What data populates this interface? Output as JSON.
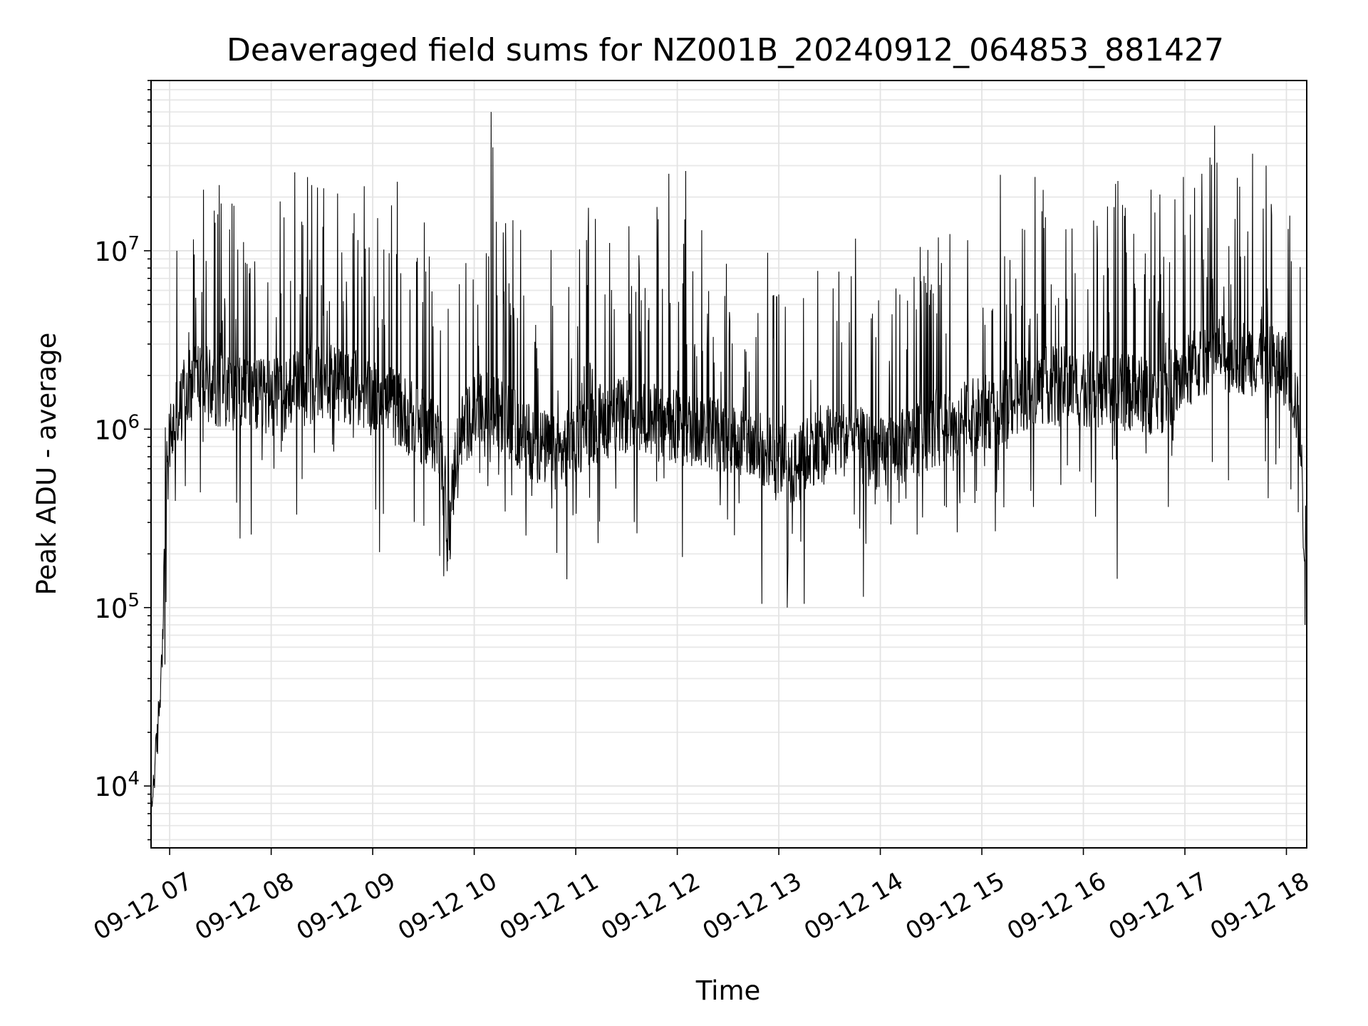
{
  "chart_data": {
    "type": "line",
    "title": "Deaveraged field sums for NZ001B_20240912_064853_881427",
    "xlabel": "Time",
    "ylabel": "Peak ADU - average",
    "yscale": "log",
    "ylim": [
      4500,
      90000000
    ],
    "xlim": [
      "2024-09-12 06:49",
      "2024-09-12 18:12"
    ],
    "grid": "major and minor, light gray",
    "legend": "none",
    "x_ticks": [
      {
        "time": "2024-09-12 07:00",
        "label": "09-12 07"
      },
      {
        "time": "2024-09-12 08:00",
        "label": "09-12 08"
      },
      {
        "time": "2024-09-12 09:00",
        "label": "09-12 09"
      },
      {
        "time": "2024-09-12 10:00",
        "label": "09-12 10"
      },
      {
        "time": "2024-09-12 11:00",
        "label": "09-12 11"
      },
      {
        "time": "2024-09-12 12:00",
        "label": "09-12 12"
      },
      {
        "time": "2024-09-12 13:00",
        "label": "09-12 13"
      },
      {
        "time": "2024-09-12 14:00",
        "label": "09-12 14"
      },
      {
        "time": "2024-09-12 15:00",
        "label": "09-12 15"
      },
      {
        "time": "2024-09-12 16:00",
        "label": "09-12 16"
      },
      {
        "time": "2024-09-12 17:00",
        "label": "09-12 17"
      },
      {
        "time": "2024-09-12 18:00",
        "label": "09-12 18"
      }
    ],
    "y_ticks": [
      {
        "value": 10000,
        "base": "10",
        "exp": "4"
      },
      {
        "value": 100000,
        "base": "10",
        "exp": "5"
      },
      {
        "value": 1000000,
        "base": "10",
        "exp": "6"
      },
      {
        "value": 10000000,
        "base": "10",
        "exp": "7"
      }
    ],
    "series": [
      {
        "color": "#000000",
        "x": [
          "2024-09-12 06:49",
          "2024-09-12 06:51",
          "2024-09-12 06:53",
          "2024-09-12 06:55",
          "2024-09-12 06:57",
          "2024-09-12 06:58",
          "2024-09-12 07:00",
          "2024-09-12 07:05",
          "2024-09-12 07:10",
          "2024-09-12 07:15",
          "2024-09-12 07:20",
          "2024-09-12 07:30",
          "2024-09-12 07:40",
          "2024-09-12 07:50",
          "2024-09-12 08:00",
          "2024-09-12 08:10",
          "2024-09-12 08:20",
          "2024-09-12 08:30",
          "2024-09-12 08:40",
          "2024-09-12 08:50",
          "2024-09-12 09:00",
          "2024-09-12 09:10",
          "2024-09-12 09:20",
          "2024-09-12 09:30",
          "2024-09-12 09:40",
          "2024-09-12 09:45",
          "2024-09-12 09:50",
          "2024-09-12 10:00",
          "2024-09-12 10:10",
          "2024-09-12 10:20",
          "2024-09-12 10:30",
          "2024-09-12 10:40",
          "2024-09-12 10:50",
          "2024-09-12 11:00",
          "2024-09-12 11:15",
          "2024-09-12 11:30",
          "2024-09-12 11:45",
          "2024-09-12 12:00",
          "2024-09-12 12:15",
          "2024-09-12 12:30",
          "2024-09-12 12:45",
          "2024-09-12 13:00",
          "2024-09-12 13:10",
          "2024-09-12 13:20",
          "2024-09-12 13:40",
          "2024-09-12 14:00",
          "2024-09-12 14:15",
          "2024-09-12 14:30",
          "2024-09-12 14:45",
          "2024-09-12 15:00",
          "2024-09-12 15:15",
          "2024-09-12 15:30",
          "2024-09-12 15:45",
          "2024-09-12 16:00",
          "2024-09-12 16:15",
          "2024-09-12 16:30",
          "2024-09-12 16:45",
          "2024-09-12 17:00",
          "2024-09-12 17:15",
          "2024-09-12 17:30",
          "2024-09-12 17:45",
          "2024-09-12 18:00",
          "2024-09-12 18:05",
          "2024-09-12 18:08",
          "2024-09-12 18:10",
          "2024-09-12 18:12"
        ],
        "y": [
          7000,
          12000,
          20000,
          45000,
          180000,
          500000,
          900000,
          1200000,
          1600000,
          2000000,
          1800000,
          1700000,
          1600000,
          1500000,
          1500000,
          1600000,
          1700000,
          1800000,
          1800000,
          1700000,
          1500000,
          1400000,
          1200000,
          1000000,
          900000,
          250000,
          900000,
          1200000,
          1300000,
          1100000,
          900000,
          800000,
          700000,
          900000,
          1100000,
          1200000,
          1100000,
          1000000,
          1000000,
          900000,
          800000,
          700000,
          600000,
          800000,
          900000,
          700000,
          800000,
          1000000,
          1100000,
          1200000,
          1400000,
          1700000,
          1800000,
          1700000,
          1600000,
          1600000,
          1500000,
          2000000,
          2700000,
          2600000,
          2500000,
          2200000,
          1500000,
          1000000,
          300000,
          200000
        ],
        "noise_decades": 0.22,
        "spike_count": 340,
        "notable_peaks": [
          {
            "time": "2024-09-12 07:20",
            "value": 22000000
          },
          {
            "time": "2024-09-12 08:55",
            "value": 23000000
          },
          {
            "time": "2024-09-12 10:10",
            "value": 60000000
          },
          {
            "time": "2024-09-12 10:11",
            "value": 38000000
          },
          {
            "time": "2024-09-12 11:55",
            "value": 27000000
          },
          {
            "time": "2024-09-12 12:05",
            "value": 28000000
          },
          {
            "time": "2024-09-12 16:40",
            "value": 22000000
          },
          {
            "time": "2024-09-12 17:10",
            "value": 27000000
          },
          {
            "time": "2024-09-12 17:40",
            "value": 35000000
          },
          {
            "time": "2024-09-12 17:48",
            "value": 30000000
          }
        ],
        "notable_dips": [
          {
            "time": "2024-09-12 09:42",
            "value": 150000
          },
          {
            "time": "2024-09-12 09:44",
            "value": 160000
          },
          {
            "time": "2024-09-12 12:50",
            "value": 105000
          },
          {
            "time": "2024-09-12 13:05",
            "value": 100000
          },
          {
            "time": "2024-09-12 13:15",
            "value": 105000
          },
          {
            "time": "2024-09-12 13:50",
            "value": 115000
          },
          {
            "time": "2024-09-12 16:20",
            "value": 145000
          },
          {
            "time": "2024-09-12 18:11",
            "value": 80000
          }
        ]
      }
    ]
  }
}
